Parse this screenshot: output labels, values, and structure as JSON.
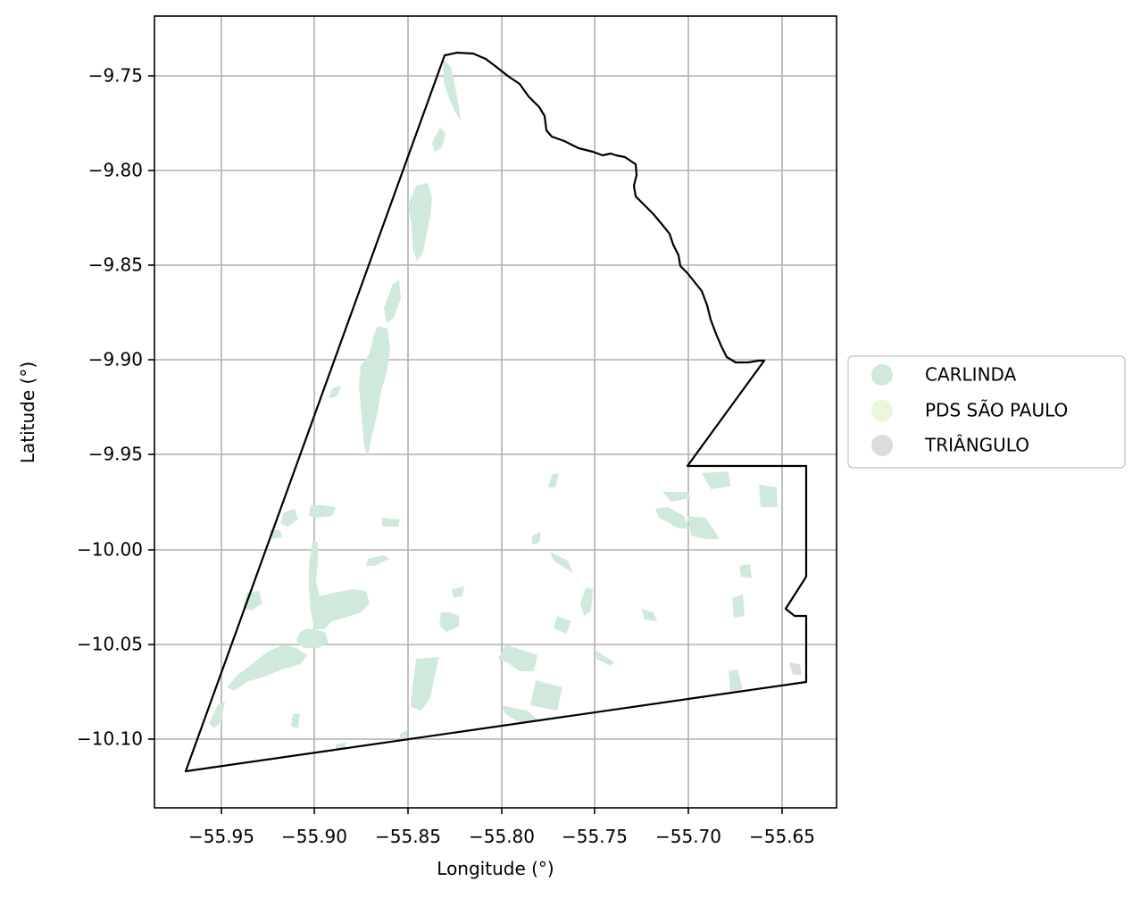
{
  "chart_data": {
    "type": "map",
    "xlabel": "Longitude (°)",
    "ylabel": "Latitude (°)",
    "xlim": [
      -55.985,
      -55.625
    ],
    "ylim": [
      -10.137,
      -9.718
    ],
    "x_ticks": [
      "−55.95",
      "−55.90",
      "−55.85",
      "−55.80",
      "−55.75",
      "−55.70",
      "−55.65"
    ],
    "y_ticks": [
      "−9.75",
      "−9.80",
      "−9.85",
      "−9.90",
      "−9.95",
      "−10.00",
      "−10.05",
      "−10.10"
    ],
    "grid": true,
    "legend_position": "center right, outside plot",
    "legend": [
      {
        "label": "CARLINDA",
        "color": "#cfeadb"
      },
      {
        "label": "PDS SÃO PAULO",
        "color": "#eaf6d8"
      },
      {
        "label": "TRIÂNGULO",
        "color": "#dcdcdc"
      }
    ],
    "boundary_color": "#000000",
    "grid_color": "#b0b0b0"
  }
}
